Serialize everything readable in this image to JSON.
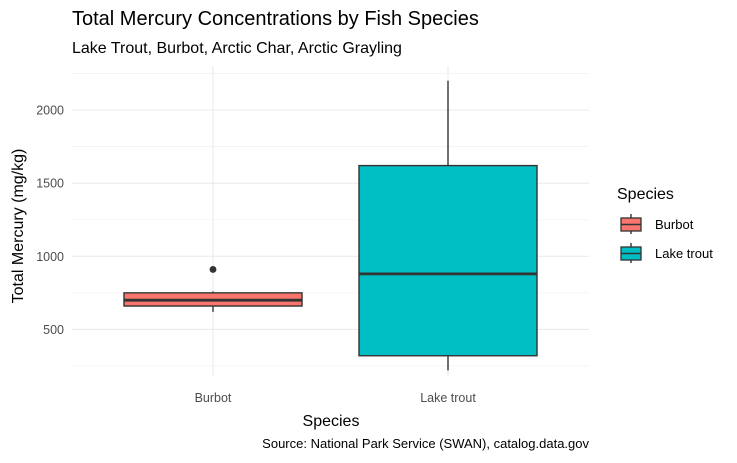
{
  "chart_data": {
    "type": "box",
    "title": "Total Mercury Concentrations by Fish Species",
    "subtitle": "Lake Trout, Burbot, Arctic Char, Arctic Grayling",
    "xlabel": "Species",
    "ylabel": "Total Mercury (mg/kg)",
    "caption": "Source: National Park Service (SWAN), catalog.data.gov",
    "categories": [
      "Burbot",
      "Lake trout"
    ],
    "ylim": [
      140,
      2280
    ],
    "yticks": [
      500,
      1000,
      1500,
      2000
    ],
    "grid": true,
    "legend_position": "right",
    "legend": {
      "title": "Species",
      "entries": [
        "Burbot",
        "Lake trout"
      ]
    },
    "series": [
      {
        "name": "Burbot",
        "color": "#F8766D",
        "whisker_low": 620,
        "q1": 660,
        "median": 700,
        "q3": 750,
        "whisker_high": 760,
        "outliers": [
          910
        ]
      },
      {
        "name": "Lake trout",
        "color": "#00BFC4",
        "whisker_low": 220,
        "q1": 320,
        "median": 880,
        "q3": 1620,
        "whisker_high": 2200,
        "outliers": []
      }
    ]
  }
}
